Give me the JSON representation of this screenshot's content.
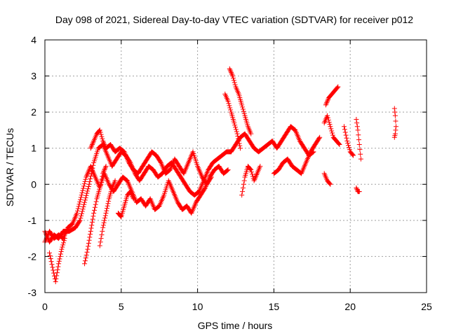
{
  "chart_data": {
    "type": "scatter",
    "title": "Day 098 of 2021, Sidereal Day-to-day VTEC variation (SDTVAR) for receiver p012",
    "xlabel": "GPS time / hours",
    "ylabel": "SDTVAR / TECUs",
    "xlim": [
      0,
      25
    ],
    "ylim": [
      -3,
      4
    ],
    "xticks": [
      "0",
      "5",
      "10",
      "15",
      "20",
      "25"
    ],
    "yticks": [
      "-3",
      "-2",
      "-1",
      "0",
      "1",
      "2",
      "3",
      "4"
    ],
    "grid": true,
    "marker": "+",
    "series_color": "#ff0000",
    "series": [
      {
        "name": "SDTVAR",
        "segments": [
          [
            [
              0.0,
              -1.3
            ],
            [
              0.3,
              -1.6
            ],
            [
              0.6,
              -1.4
            ],
            [
              0.9,
              -1.5
            ],
            [
              1.2,
              -1.3
            ],
            [
              1.6,
              -1.3
            ],
            [
              2.0,
              -1.2
            ],
            [
              2.3,
              -1.0
            ],
            [
              2.6,
              -0.5
            ],
            [
              2.9,
              0.0
            ],
            [
              3.2,
              0.6
            ],
            [
              3.5,
              1.0
            ],
            [
              3.8,
              1.1
            ],
            [
              4.1,
              0.8
            ],
            [
              4.4,
              0.5
            ],
            [
              4.7,
              0.7
            ],
            [
              5.0,
              0.9
            ],
            [
              5.3,
              0.8
            ],
            [
              5.6,
              0.6
            ],
            [
              5.9,
              0.3
            ],
            [
              6.2,
              0.1
            ],
            [
              6.5,
              0.3
            ],
            [
              6.8,
              0.5
            ],
            [
              7.1,
              0.4
            ],
            [
              7.4,
              0.2
            ],
            [
              7.7,
              0.3
            ],
            [
              8.0,
              0.5
            ],
            [
              8.3,
              0.6
            ],
            [
              8.6,
              0.4
            ],
            [
              8.9,
              0.2
            ],
            [
              9.2,
              0.0
            ],
            [
              9.5,
              -0.2
            ],
            [
              9.8,
              -0.3
            ],
            [
              10.1,
              -0.2
            ],
            [
              10.4,
              0.1
            ],
            [
              10.7,
              0.4
            ],
            [
              11.0,
              0.6
            ],
            [
              11.3,
              0.7
            ],
            [
              11.6,
              0.8
            ],
            [
              11.9,
              0.9
            ],
            [
              12.2,
              0.9
            ],
            [
              12.5,
              1.1
            ],
            [
              12.8,
              1.3
            ],
            [
              13.1,
              1.4
            ],
            [
              13.4,
              1.2
            ],
            [
              13.7,
              1.0
            ],
            [
              14.0,
              0.9
            ],
            [
              14.3,
              1.0
            ],
            [
              14.6,
              1.1
            ],
            [
              14.9,
              1.2
            ],
            [
              15.2,
              1.0
            ],
            [
              15.5,
              1.2
            ],
            [
              15.8,
              1.4
            ],
            [
              16.1,
              1.6
            ],
            [
              16.4,
              1.5
            ],
            [
              16.7,
              1.2
            ],
            [
              17.0,
              1.0
            ],
            [
              17.3,
              0.8
            ],
            [
              17.6,
              0.9
            ]
          ],
          [
            [
              0.0,
              -1.6
            ],
            [
              0.3,
              -1.3
            ],
            [
              0.6,
              -1.5
            ],
            [
              0.9,
              -1.4
            ],
            [
              1.2,
              -1.5
            ],
            [
              1.5,
              -1.2
            ],
            [
              1.8,
              -1.1
            ],
            [
              2.1,
              -0.8
            ],
            [
              2.4,
              -0.3
            ],
            [
              2.7,
              0.2
            ],
            [
              3.0,
              0.5
            ],
            [
              3.3,
              0.2
            ],
            [
              3.6,
              -0.1
            ],
            [
              3.9,
              0.3
            ],
            [
              4.2,
              0.0
            ],
            [
              4.5,
              -0.2
            ],
            [
              4.8,
              0.0
            ],
            [
              5.1,
              0.2
            ],
            [
              5.4,
              0.1
            ],
            [
              5.7,
              -0.2
            ],
            [
              6.0,
              -0.5
            ],
            [
              6.3,
              -0.4
            ],
            [
              6.6,
              -0.6
            ],
            [
              6.9,
              -0.4
            ],
            [
              7.2,
              -0.7
            ],
            [
              7.5,
              -0.6
            ],
            [
              7.8,
              -0.3
            ],
            [
              8.1,
              0.1
            ],
            [
              8.4,
              -0.2
            ],
            [
              8.7,
              -0.5
            ],
            [
              9.0,
              -0.7
            ],
            [
              9.3,
              -0.6
            ],
            [
              9.6,
              -0.8
            ],
            [
              9.9,
              -0.5
            ],
            [
              10.2,
              -0.3
            ],
            [
              10.5,
              -0.1
            ],
            [
              10.8,
              0.2
            ],
            [
              11.1,
              0.4
            ],
            [
              11.4,
              0.5
            ],
            [
              11.7,
              0.3
            ],
            [
              12.0,
              0.4
            ]
          ],
          [
            [
              3.0,
              1.0
            ],
            [
              3.2,
              1.2
            ],
            [
              3.4,
              1.4
            ],
            [
              3.6,
              1.5
            ],
            [
              3.8,
              1.2
            ],
            [
              4.0,
              1.0
            ],
            [
              4.3,
              1.1
            ],
            [
              4.6,
              0.9
            ],
            [
              4.9,
              1.0
            ],
            [
              5.2,
              0.9
            ],
            [
              5.5,
              0.6
            ],
            [
              5.8,
              0.4
            ],
            [
              6.1,
              0.3
            ],
            [
              6.4,
              0.5
            ],
            [
              6.7,
              0.7
            ],
            [
              7.0,
              0.9
            ],
            [
              7.3,
              0.8
            ],
            [
              7.6,
              0.6
            ],
            [
              7.9,
              0.3
            ],
            [
              8.2,
              0.4
            ],
            [
              8.5,
              0.7
            ],
            [
              8.8,
              0.5
            ],
            [
              9.1,
              0.3
            ],
            [
              9.4,
              0.6
            ],
            [
              9.7,
              0.9
            ],
            [
              10.0,
              0.5
            ],
            [
              10.3,
              0.2
            ],
            [
              10.6,
              0.0
            ],
            [
              10.9,
              0.2
            ]
          ],
          [
            [
              0.3,
              -1.9
            ],
            [
              0.5,
              -2.3
            ],
            [
              0.7,
              -2.7
            ],
            [
              0.9,
              -2.2
            ],
            [
              1.1,
              -1.8
            ],
            [
              1.3,
              -1.5
            ]
          ],
          [
            [
              2.6,
              -2.2
            ],
            [
              2.8,
              -1.8
            ],
            [
              3.0,
              -1.3
            ],
            [
              3.2,
              -0.8
            ],
            [
              3.4,
              -0.4
            ],
            [
              3.6,
              -0.1
            ],
            [
              3.8,
              0.3
            ],
            [
              4.0,
              0.5
            ]
          ],
          [
            [
              3.6,
              -1.7
            ],
            [
              3.8,
              -1.2
            ],
            [
              4.0,
              -0.8
            ],
            [
              4.2,
              -0.4
            ],
            [
              4.4,
              -0.1
            ],
            [
              4.6,
              0.1
            ]
          ],
          [
            [
              4.8,
              -0.8
            ],
            [
              5.0,
              -0.9
            ],
            [
              5.2,
              -0.6
            ],
            [
              5.4,
              -0.3
            ],
            [
              5.6,
              -0.2
            ],
            [
              5.8,
              -0.4
            ]
          ],
          [
            [
              12.1,
              3.2
            ],
            [
              12.3,
              3.0
            ],
            [
              12.5,
              2.7
            ],
            [
              12.7,
              2.5
            ],
            [
              12.9,
              2.2
            ],
            [
              13.1,
              1.9
            ],
            [
              13.3,
              1.6
            ],
            [
              13.5,
              1.4
            ]
          ],
          [
            [
              11.8,
              2.5
            ],
            [
              12.0,
              2.3
            ],
            [
              12.2,
              2.0
            ],
            [
              12.4,
              1.7
            ],
            [
              12.6,
              1.4
            ],
            [
              12.8,
              1.0
            ]
          ],
          [
            [
              12.9,
              -0.3
            ],
            [
              13.1,
              0.2
            ],
            [
              13.3,
              0.5
            ],
            [
              13.5,
              0.4
            ],
            [
              13.7,
              0.1
            ],
            [
              13.9,
              0.3
            ],
            [
              14.1,
              0.5
            ]
          ],
          [
            [
              15.0,
              0.3
            ],
            [
              15.3,
              0.4
            ],
            [
              15.6,
              0.6
            ],
            [
              15.9,
              0.7
            ],
            [
              16.2,
              0.5
            ],
            [
              16.5,
              0.4
            ],
            [
              16.8,
              0.3
            ],
            [
              17.1,
              0.6
            ],
            [
              17.4,
              0.9
            ],
            [
              17.7,
              1.1
            ],
            [
              18.0,
              1.3
            ]
          ],
          [
            [
              18.3,
              1.7
            ],
            [
              18.5,
              1.9
            ],
            [
              18.7,
              1.6
            ],
            [
              18.9,
              1.3
            ],
            [
              19.1,
              1.2
            ],
            [
              19.3,
              1.1
            ]
          ],
          [
            [
              18.4,
              2.2
            ],
            [
              18.6,
              2.4
            ],
            [
              18.8,
              2.5
            ],
            [
              19.0,
              2.6
            ],
            [
              19.2,
              2.7
            ]
          ],
          [
            [
              18.3,
              0.3
            ],
            [
              18.5,
              0.1
            ],
            [
              18.7,
              0.0
            ]
          ],
          [
            [
              19.6,
              1.6
            ],
            [
              19.8,
              1.2
            ],
            [
              20.0,
              0.9
            ],
            [
              20.2,
              0.8
            ]
          ],
          [
            [
              20.4,
              1.8
            ],
            [
              20.5,
              1.5
            ],
            [
              20.6,
              1.1
            ],
            [
              20.7,
              0.7
            ]
          ],
          [
            [
              20.4,
              -0.1
            ],
            [
              20.5,
              -0.2
            ],
            [
              20.6,
              -0.2
            ]
          ],
          [
            [
              22.9,
              2.1
            ],
            [
              22.95,
              1.9
            ],
            [
              23.0,
              1.6
            ],
            [
              22.95,
              1.4
            ],
            [
              22.9,
              1.3
            ]
          ]
        ]
      }
    ]
  }
}
